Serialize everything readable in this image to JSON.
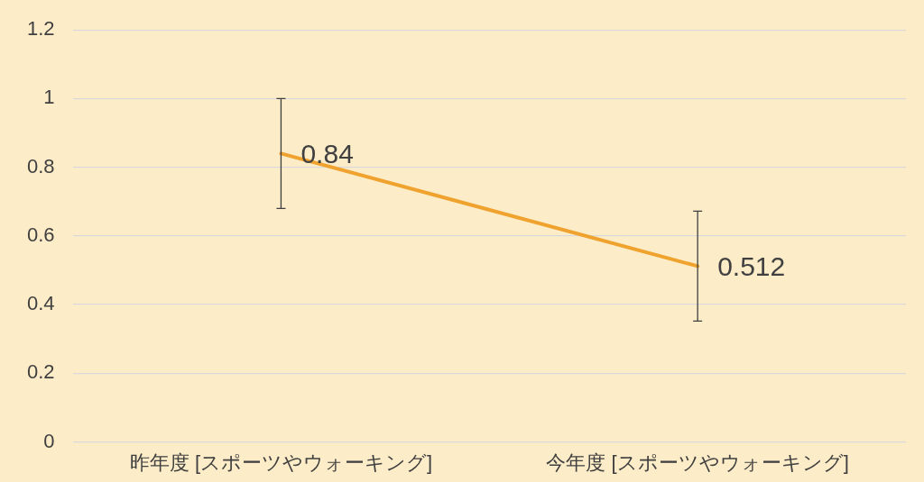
{
  "chart_data": {
    "type": "line",
    "categories": [
      "昨年度 [スポーツやウォーキング]",
      "今年度 [スポーツやウォーキング]"
    ],
    "series": [
      {
        "color": "#f0a22e",
        "values": [
          0.84,
          0.512
        ],
        "errors": [
          0.16,
          0.16
        ]
      }
    ],
    "ylim": [
      0,
      1.2
    ],
    "yticks": [
      0,
      0.2,
      0.4,
      0.6,
      0.8,
      1,
      1.2
    ],
    "grid": "y",
    "legend": false,
    "marker": "none",
    "line_style": "solid",
    "data_labels": true
  }
}
